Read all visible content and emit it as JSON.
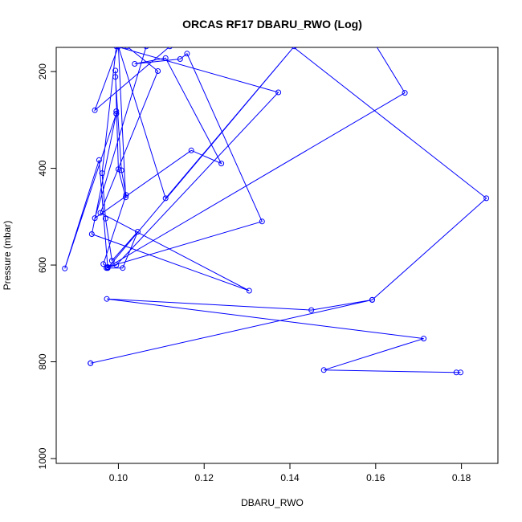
{
  "chart_data": {
    "type": "line",
    "title": "ORCAS RF17 DBARU_RWO (Log)",
    "xlabel": "DBARU_RWO",
    "ylabel": "Pressure (mbar)",
    "xlim": [
      0.0855,
      0.1885
    ],
    "ylim": [
      1010,
      150
    ],
    "y_reversed": true,
    "x_ticks": [
      0.1,
      0.12,
      0.14,
      0.16,
      0.18
    ],
    "x_tick_labels": [
      "0.10",
      "0.12",
      "0.14",
      "0.16",
      "0.18"
    ],
    "y_ticks": [
      200,
      400,
      600,
      800,
      1000
    ],
    "y_tick_labels": [
      "200",
      "400",
      "600",
      "800",
      "1000"
    ],
    "series_color": "#0000ff",
    "grid": false,
    "series": [
      {
        "points": [
          [
            0.1798,
            822
          ],
          [
            0.1788,
            822
          ],
          [
            0.1479,
            817
          ],
          [
            0.1712,
            752
          ],
          [
            0.0973,
            670
          ],
          [
            0.145,
            693
          ],
          [
            0.1592,
            672
          ],
          [
            0.0935,
            803
          ],
          [
            0.0935,
            803
          ],
          [
            0.1592,
            672
          ],
          [
            0.1858,
            462
          ],
          [
            0.1392,
            138
          ],
          [
            0.1595,
            138
          ],
          [
            0.1668,
            244
          ],
          [
            0.0972,
            606
          ],
          [
            0.101,
            606
          ],
          [
            0.1045,
            531
          ],
          [
            0.0985,
            591
          ],
          [
            0.097,
            504
          ],
          [
            0.0962,
            410
          ],
          [
            0.0995,
            148
          ],
          [
            0.1373,
            243
          ],
          [
            0.0995,
            600
          ],
          [
            0.0975,
            605
          ],
          [
            0.0965,
            598
          ],
          [
            0.1018,
            455
          ],
          [
            0.1007,
            404
          ],
          [
            0.0993,
            211
          ],
          [
            0.0993,
            198
          ],
          [
            0.1,
            402
          ],
          [
            0.1017,
            460
          ],
          [
            0.1,
            148
          ],
          [
            0.0945,
            280
          ],
          [
            0.112,
            148
          ],
          [
            0.102,
            148
          ],
          [
            0.1092,
            199
          ],
          [
            0.0958,
            492
          ],
          [
            0.1305,
            653
          ],
          [
            0.0938,
            536
          ],
          [
            0.0995,
            287
          ],
          [
            0.0995,
            282
          ],
          [
            0.0995,
            287
          ],
          [
            0.0875,
            607
          ],
          [
            0.0955,
            383
          ],
          [
            0.0975,
            604
          ],
          [
            0.1335,
            510
          ],
          [
            0.116,
            163
          ],
          [
            0.1144,
            174
          ],
          [
            0.1038,
            184
          ],
          [
            0.111,
            172
          ],
          [
            0.124,
            390
          ],
          [
            0.117,
            363
          ],
          [
            0.0945,
            503
          ],
          [
            0.1065,
            148
          ],
          [
            0.1,
            148
          ],
          [
            0.111,
            462
          ],
          [
            0.141,
            148
          ],
          [
            0.0975,
            606
          ],
          [
            0.0975,
            606
          ]
        ]
      }
    ]
  }
}
